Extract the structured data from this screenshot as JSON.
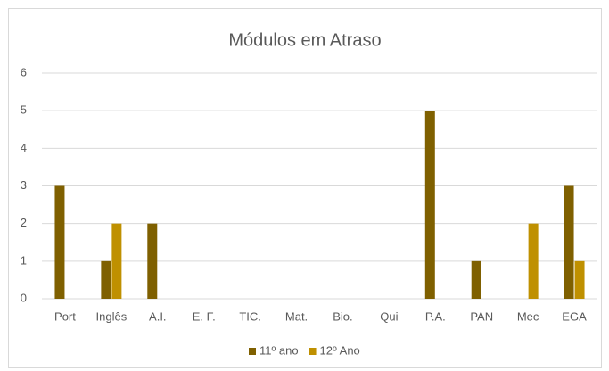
{
  "chart_data": {
    "type": "bar",
    "title": "Módulos em Atraso",
    "categories": [
      "Port",
      "Inglês",
      "A.I.",
      "E. F.",
      "TIC.",
      "Mat.",
      "Bio.",
      "Qui",
      "P.A.",
      "PAN",
      "Mec",
      "EGA"
    ],
    "series": [
      {
        "name": "11º ano",
        "color": "#7f6000",
        "values": [
          3,
          1,
          2,
          0,
          0,
          0,
          0,
          0,
          5,
          1,
          0,
          3
        ]
      },
      {
        "name": "12º Ano",
        "color": "#bf9000",
        "values": [
          0,
          2,
          0,
          0,
          0,
          0,
          0,
          0,
          0,
          0,
          2,
          1
        ]
      }
    ],
    "ylim": [
      0,
      6
    ],
    "yticks": [
      0,
      1,
      2,
      3,
      4,
      5,
      6
    ],
    "grid": true,
    "legend": "bottom"
  }
}
